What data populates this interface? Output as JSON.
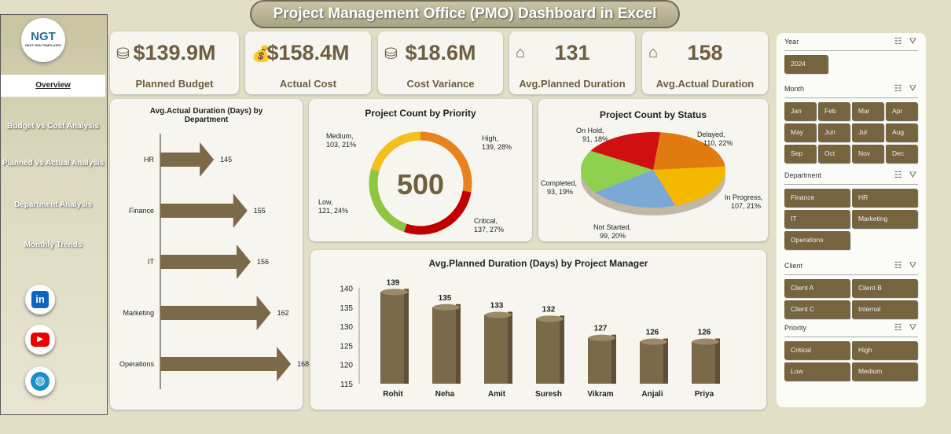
{
  "title": "Project Management Office (PMO) Dashboard in Excel",
  "logo": {
    "text": "NGT",
    "sub": "NEXT GEN TEMPLATES"
  },
  "nav": [
    "Overview",
    "Budget vs Cost Analysis",
    "Planned vs Actual  Analysis",
    "Department Analysis",
    "Monthly Trends"
  ],
  "social": [
    "linkedin-icon",
    "youtube-icon",
    "globe-icon"
  ],
  "kpis": [
    {
      "value": "$139.9M",
      "label": "Planned Budget",
      "icon": "coins-icon"
    },
    {
      "value": "$158.4M",
      "label": "Actual Cost",
      "icon": "money-bag-icon"
    },
    {
      "value": "$18.6M",
      "label": "Cost Variance",
      "icon": "coins-icon"
    },
    {
      "value": "131",
      "label": "Avg.Planned Duration",
      "icon": "hourglass-icon"
    },
    {
      "value": "158",
      "label": "Avg.Actual Duration",
      "icon": "hourglass-icon"
    }
  ],
  "chart_data": [
    {
      "type": "bar",
      "title": "Avg.Actual Duration (Days) by Department",
      "categories": [
        "HR",
        "Finance",
        "IT",
        "Marketing",
        "Operations"
      ],
      "values": [
        145,
        155,
        156,
        162,
        168
      ]
    },
    {
      "type": "pie",
      "title": "Project Count by Priority",
      "center_label": "500",
      "categories": [
        "High",
        "Critical",
        "Low",
        "Medium"
      ],
      "values": [
        139,
        137,
        121,
        103
      ],
      "labels": [
        "High, 139, 28%",
        "Critical, 137, 27%",
        "Low, 121, 24%",
        "Medium, 103, 21%"
      ],
      "colors": [
        "#e8821e",
        "#c00000",
        "#8dc63f",
        "#f4c01e"
      ]
    },
    {
      "type": "pie",
      "title": "Project Count by Status",
      "categories": [
        "Delayed",
        "In Progress",
        "Not Started",
        "Completed",
        "On Hold"
      ],
      "values": [
        110,
        107,
        99,
        93,
        91
      ],
      "labels": [
        "Delayed, 110, 22%",
        "In Progress, 107, 21%",
        "Not Started, 99, 20%",
        "Completed, 93, 19%",
        "On Hold, 91, 18%"
      ],
      "colors": [
        "#e07b10",
        "#f5b800",
        "#7aa9d6",
        "#8fd14f",
        "#d01010"
      ]
    },
    {
      "type": "bar",
      "title": "Avg.Planned Duration (Days) by Project Manager",
      "categories": [
        "Rohit",
        "Neha",
        "Amit",
        "Suresh",
        "Vikram",
        "Anjali",
        "Priya"
      ],
      "values": [
        139,
        135,
        133,
        132,
        127,
        126,
        126
      ],
      "ylim": [
        115,
        140
      ],
      "yticks": [
        "140",
        "135",
        "130",
        "125",
        "120",
        "115"
      ]
    }
  ],
  "slicers": [
    {
      "title": "Year",
      "items": [
        "2024"
      ]
    },
    {
      "title": "Month",
      "items": [
        "Jan",
        "Feb",
        "Mar",
        "Apr",
        "May",
        "Jun",
        "Jul",
        "Aug",
        "Sep",
        "Oct",
        "Nov",
        "Dec"
      ]
    },
    {
      "title": "Department",
      "items": [
        "Finance",
        "HR",
        "IT",
        "Marketing",
        "Operations"
      ]
    },
    {
      "title": "Client",
      "items": [
        "Client A",
        "Client B",
        "Client C",
        "Internal"
      ]
    },
    {
      "title": "Priority",
      "items": [
        "Critical",
        "High",
        "Low",
        "Medium"
      ]
    }
  ]
}
